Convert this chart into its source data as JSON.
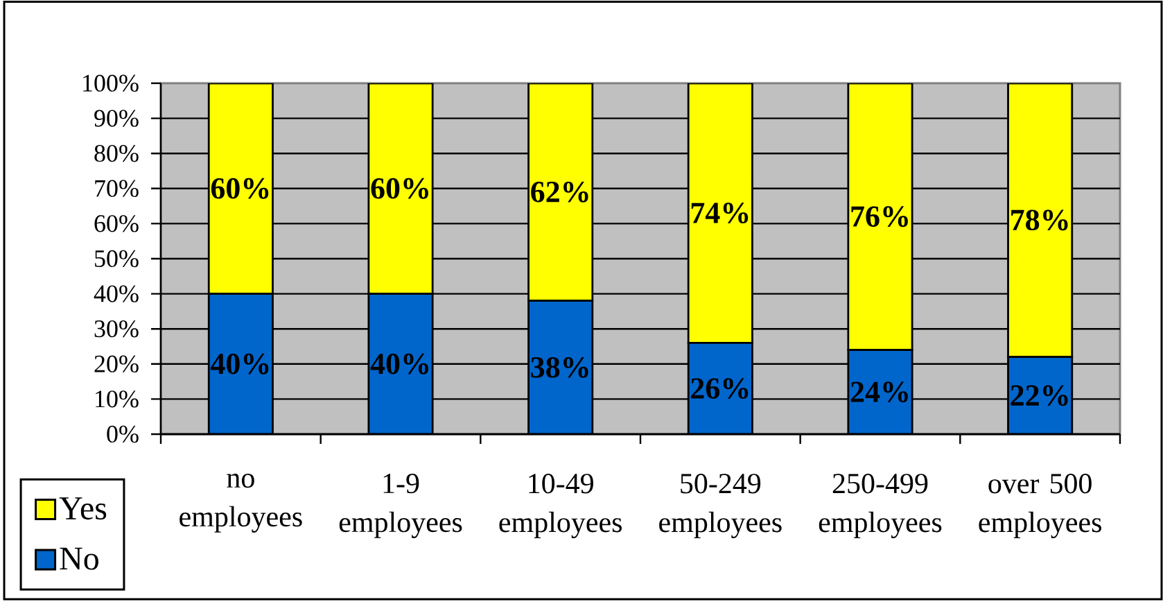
{
  "chart_data": {
    "type": "bar",
    "stacked": true,
    "categories": [
      "no employees",
      "1-9 employees",
      "10-49 employees",
      "50-249 employees",
      "250-499 employees",
      "over 500 employees"
    ],
    "series": [
      {
        "name": "No",
        "color": "#0066cc",
        "values": [
          40,
          40,
          38,
          26,
          24,
          22
        ],
        "value_labels": [
          "40%",
          "40%",
          "38%",
          "26%",
          "24%",
          "22%"
        ]
      },
      {
        "name": "Yes",
        "color": "#ffff00",
        "values": [
          60,
          60,
          62,
          74,
          76,
          78
        ],
        "value_labels": [
          "60%",
          "60%",
          "62%",
          "74%",
          "76%",
          "78%"
        ]
      }
    ],
    "ylim": [
      0,
      100
    ],
    "yticks": [
      {
        "value": 0,
        "label": "0%"
      },
      {
        "value": 10,
        "label": "10%"
      },
      {
        "value": 20,
        "label": "20%"
      },
      {
        "value": 30,
        "label": "30%"
      },
      {
        "value": 40,
        "label": "40%"
      },
      {
        "value": 50,
        "label": "50%"
      },
      {
        "value": 60,
        "label": "60%"
      },
      {
        "value": 70,
        "label": "70%"
      },
      {
        "value": 80,
        "label": "80%"
      },
      {
        "value": 90,
        "label": "90%"
      },
      {
        "value": 100,
        "label": "100%"
      }
    ],
    "grid": "y",
    "legend": "bottom left"
  }
}
